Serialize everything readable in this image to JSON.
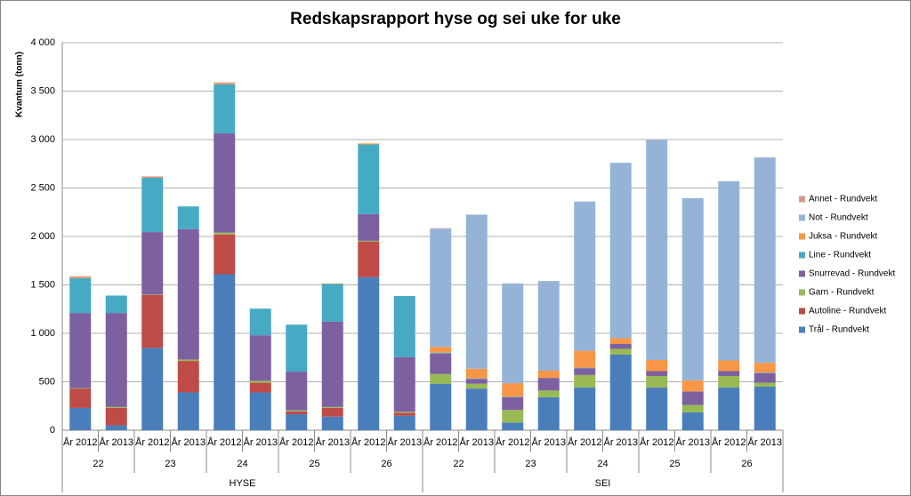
{
  "chart_data": {
    "type": "stacked-bar",
    "title": "Redskapsrapport hyse og sei uke for uke",
    "y_label": "Kvantum (tonn)",
    "categories": [
      "År 2012",
      "År 2013",
      "År 2012",
      "År 2013",
      "År 2012",
      "År 2013",
      "År 2012",
      "År 2013",
      "År 2012",
      "År 2013",
      "År 2012",
      "År 2013",
      "År 2012",
      "År 2013",
      "År 2012",
      "År 2013",
      "År 2012",
      "År 2013",
      "År 2012",
      "År 2013"
    ],
    "weeks": [
      "22",
      "23",
      "24",
      "25",
      "26",
      "22",
      "23",
      "24",
      "25",
      "26"
    ],
    "species": [
      "HYSE",
      "SEI"
    ],
    "ylim": [
      0,
      4000
    ],
    "yticks": [
      0,
      500,
      {
        "value": 1000,
        "label": "1 000"
      },
      {
        "value": 1500,
        "label": "1 500"
      },
      {
        "value": 2000,
        "label": "2 000"
      },
      {
        "value": 2500,
        "label": "2 500"
      },
      {
        "value": 3000,
        "label": "3 000"
      },
      {
        "value": 3500,
        "label": "3 500"
      },
      {
        "value": 4000,
        "label": "4 000"
      }
    ],
    "grid": true,
    "legend": "right",
    "series": [
      {
        "name": "Trål - Rundvekt",
        "color": "#4a7ebb",
        "values": [
          230,
          50,
          850,
          390,
          1610,
          390,
          165,
          140,
          1580,
          150,
          480,
          430,
          80,
          340,
          440,
          780,
          440,
          185,
          440,
          450
        ]
      },
      {
        "name": "Autoline - Rundvekt",
        "color": "#be4b48",
        "values": [
          200,
          180,
          545,
          325,
          410,
          100,
          30,
          90,
          365,
          30,
          0,
          0,
          0,
          0,
          0,
          0,
          0,
          0,
          0,
          0
        ]
      },
      {
        "name": "Garn - Rundvekt",
        "color": "#98b954",
        "values": [
          5,
          10,
          5,
          15,
          20,
          20,
          10,
          10,
          10,
          10,
          100,
          50,
          130,
          70,
          130,
          60,
          120,
          75,
          120,
          40
        ]
      },
      {
        "name": "Snurrevad - Rundvekt",
        "color": "#7d60a0",
        "values": [
          775,
          970,
          645,
          1345,
          1025,
          470,
          400,
          880,
          275,
          565,
          210,
          50,
          130,
          130,
          70,
          50,
          50,
          140,
          50,
          100
        ]
      },
      {
        "name": "Line - Rundvekt",
        "color": "#46aac5",
        "values": [
          360,
          180,
          560,
          235,
          505,
          275,
          485,
          390,
          720,
          630,
          10,
          5,
          5,
          0,
          5,
          0,
          0,
          0,
          0,
          5
        ]
      },
      {
        "name": "Juksa - Rundvekt",
        "color": "#f79646",
        "values": [
          10,
          0,
          5,
          0,
          10,
          0,
          0,
          5,
          10,
          0,
          60,
          100,
          140,
          75,
          175,
          60,
          115,
          115,
          110,
          100
        ]
      },
      {
        "name": "Not - Rundvekt",
        "color": "#95b3d7",
        "values": [
          0,
          0,
          0,
          0,
          0,
          0,
          0,
          0,
          0,
          0,
          1220,
          1590,
          1030,
          925,
          1540,
          1810,
          2270,
          1880,
          1850,
          2120
        ]
      },
      {
        "name": "Annet - Rundvekt",
        "color": "#d99694",
        "values": [
          10,
          0,
          10,
          0,
          10,
          0,
          0,
          0,
          0,
          0,
          5,
          0,
          0,
          0,
          0,
          0,
          0,
          0,
          0,
          0
        ]
      }
    ]
  }
}
